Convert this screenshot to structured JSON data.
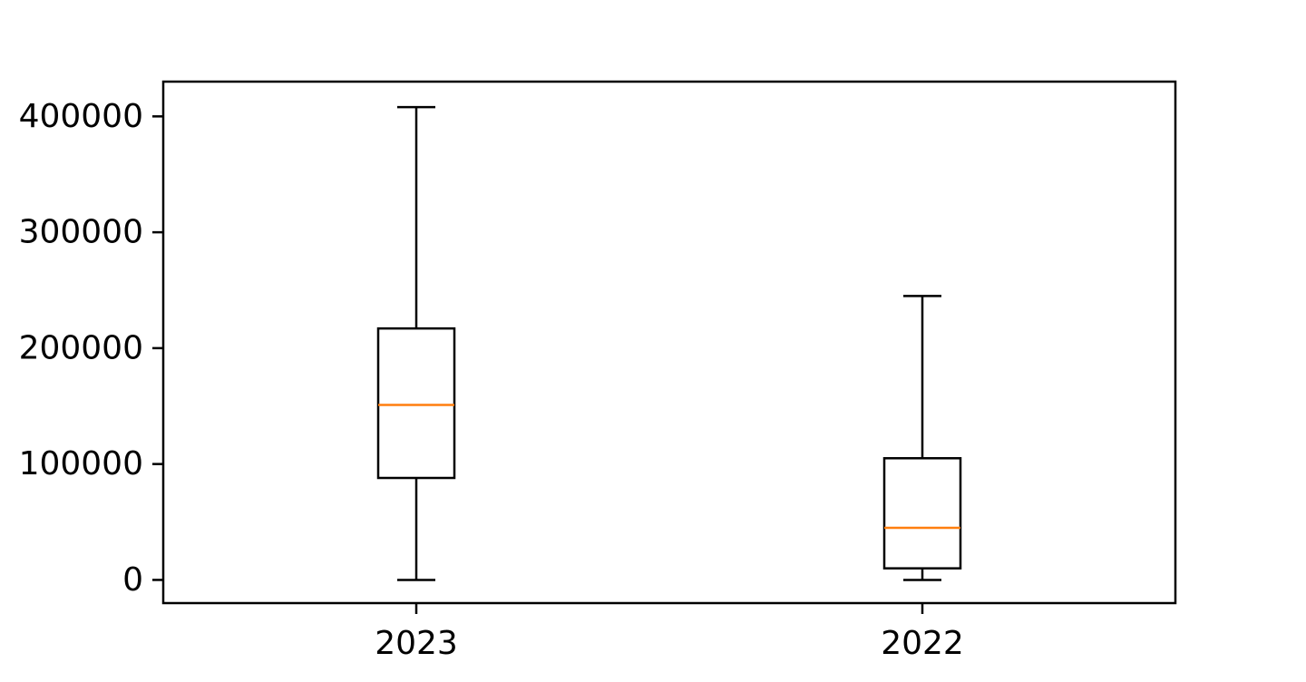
{
  "chart_data": {
    "type": "box",
    "title": "",
    "xlabel": "",
    "ylabel": "",
    "ylim": [
      -20000,
      430000
    ],
    "yticks": [
      0,
      100000,
      200000,
      300000,
      400000
    ],
    "ytick_labels": [
      "0",
      "100000",
      "200000",
      "300000",
      "400000"
    ],
    "categories": [
      "2023",
      "2022"
    ],
    "boxes": [
      {
        "category": "2023",
        "whisker_low": 0,
        "q1": 88000,
        "median": 151000,
        "q3": 217000,
        "whisker_high": 408000
      },
      {
        "category": "2022",
        "whisker_low": 0,
        "q1": 10000,
        "median": 45000,
        "q3": 105000,
        "whisker_high": 245000
      }
    ],
    "grid": false,
    "colors": {
      "box": "#000000",
      "median": "#ff7f0e",
      "axis": "#000000"
    }
  }
}
